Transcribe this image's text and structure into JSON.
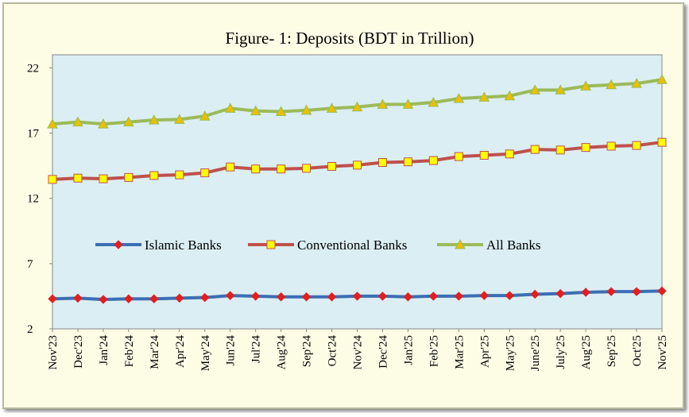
{
  "chart_data": {
    "type": "line",
    "title": "Figure- 1: Deposits (BDT in Trillion)",
    "categories": [
      "Nov'23",
      "Dec'23",
      "Jan'24",
      "Feb'24",
      "Mar'24",
      "Apr'24",
      "May'24",
      "Jun'24",
      "Jul'24",
      "Aug'24",
      "Sep'24",
      "Oct'24",
      "Nov'24",
      "Dec'24",
      "Jan'25",
      "Feb'25",
      "Mar'25",
      "Apr'25",
      "May'25",
      "June'25",
      "July'25",
      "Aug'25",
      "Sep'25",
      "Oct'25",
      "Nov'25"
    ],
    "series": [
      {
        "name": "Islamic Banks",
        "color": "#3b6fb5",
        "marker_color": "#e02020",
        "marker": "diamond",
        "values": [
          4.3,
          4.35,
          4.25,
          4.3,
          4.3,
          4.35,
          4.4,
          4.55,
          4.5,
          4.45,
          4.45,
          4.45,
          4.5,
          4.5,
          4.45,
          4.5,
          4.5,
          4.55,
          4.55,
          4.65,
          4.7,
          4.8,
          4.85,
          4.85,
          4.9
        ]
      },
      {
        "name": "Conventional Banks",
        "color": "#c0504d",
        "marker_color": "#ffff00",
        "marker": "square",
        "values": [
          13.45,
          13.55,
          13.5,
          13.6,
          13.75,
          13.8,
          13.95,
          14.4,
          14.25,
          14.25,
          14.3,
          14.45,
          14.55,
          14.75,
          14.8,
          14.9,
          15.2,
          15.3,
          15.4,
          15.75,
          15.7,
          15.9,
          16.0,
          16.05,
          16.3
        ]
      },
      {
        "name": "All Banks",
        "color": "#9bbb59",
        "marker_color": "#e8c000",
        "marker": "triangle",
        "values": [
          17.7,
          17.85,
          17.7,
          17.85,
          18.0,
          18.05,
          18.3,
          18.9,
          18.7,
          18.65,
          18.75,
          18.9,
          19.0,
          19.2,
          19.2,
          19.35,
          19.65,
          19.75,
          19.85,
          20.3,
          20.3,
          20.6,
          20.7,
          20.8,
          21.1
        ]
      }
    ],
    "ylim": [
      2,
      23
    ],
    "yticks": [
      2,
      7,
      12,
      17,
      22
    ],
    "grid": false
  }
}
